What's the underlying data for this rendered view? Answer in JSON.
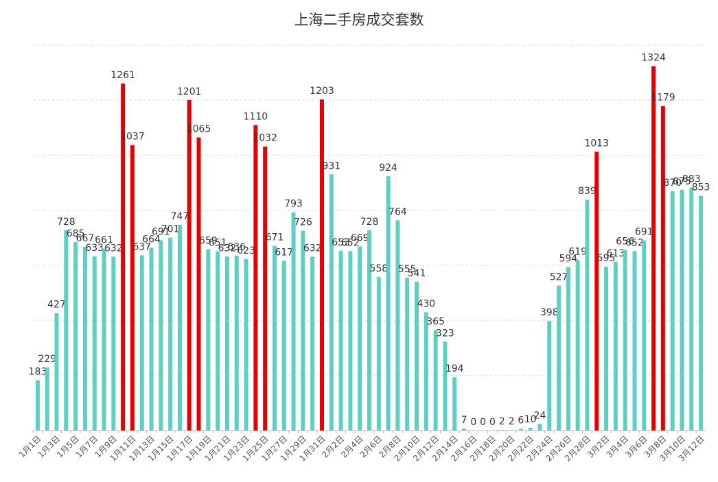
{
  "chart_data": {
    "type": "bar",
    "title": "上海二手房成交套数",
    "categories": [
      "1月1日",
      null,
      "1月3日",
      null,
      "1月5日",
      null,
      "1月7日",
      null,
      "1月9日",
      null,
      "1月11日",
      null,
      "1月13日",
      null,
      "1月15日",
      null,
      "1月17日",
      null,
      "1月19日",
      null,
      "1月21日",
      null,
      "1月23日",
      null,
      "1月25日",
      null,
      "1月27日",
      null,
      "1月29日",
      null,
      "1月31日",
      null,
      "2月2日",
      null,
      "2月4日",
      null,
      "2月6日",
      null,
      "2月8日",
      null,
      "2月10日",
      null,
      "2月12日",
      null,
      "2月14日",
      null,
      "2月16日",
      null,
      "2月18日",
      null,
      "2月20日",
      null,
      "2月22日",
      null,
      "2月24日",
      null,
      "2月26日",
      null,
      "2月28日",
      null,
      "3月2日",
      null,
      "3月4日",
      null,
      "3月6日",
      null,
      "3月8日",
      null,
      "3月10日",
      null,
      "3月12日"
    ],
    "values": [
      183,
      229,
      427,
      728,
      685,
      667,
      633,
      661,
      632,
      1261,
      1037,
      637,
      664,
      691,
      701,
      747,
      1201,
      1065,
      659,
      651,
      632,
      636,
      623,
      1110,
      1032,
      671,
      617,
      793,
      726,
      632,
      1203,
      931,
      653,
      652,
      669,
      728,
      558,
      924,
      764,
      555,
      541,
      430,
      365,
      323,
      194,
      7,
      0,
      0,
      0,
      2,
      2,
      6,
      10,
      24,
      398,
      527,
      594,
      619,
      839,
      1013,
      595,
      613,
      656,
      652,
      691,
      1324,
      1179,
      870,
      875,
      883,
      853
    ],
    "colors": [
      "#5dcfc3",
      "#5dcfc3",
      "#5dcfc3",
      "#5dcfc3",
      "#5dcfc3",
      "#5dcfc3",
      "#5dcfc3",
      "#5dcfc3",
      "#5dcfc3",
      "#e60000",
      "#e60000",
      "#5dcfc3",
      "#5dcfc3",
      "#5dcfc3",
      "#5dcfc3",
      "#5dcfc3",
      "#e60000",
      "#e60000",
      "#5dcfc3",
      "#5dcfc3",
      "#5dcfc3",
      "#5dcfc3",
      "#5dcfc3",
      "#e60000",
      "#e60000",
      "#5dcfc3",
      "#5dcfc3",
      "#5dcfc3",
      "#5dcfc3",
      "#5dcfc3",
      "#e60000",
      "#5dcfc3",
      "#5dcfc3",
      "#5dcfc3",
      "#5dcfc3",
      "#5dcfc3",
      "#5dcfc3",
      "#5dcfc3",
      "#5dcfc3",
      "#5dcfc3",
      "#5dcfc3",
      "#5dcfc3",
      "#5dcfc3",
      "#5dcfc3",
      "#5dcfc3",
      "#5dcfc3",
      "#5dcfc3",
      "#5dcfc3",
      "#5dcfc3",
      "#5dcfc3",
      "#5dcfc3",
      "#5dcfc3",
      "#5dcfc3",
      "#5dcfc3",
      "#5dcfc3",
      "#5dcfc3",
      "#5dcfc3",
      "#5dcfc3",
      "#5dcfc3",
      "#e60000",
      "#5dcfc3",
      "#5dcfc3",
      "#5dcfc3",
      "#5dcfc3",
      "#5dcfc3",
      "#e60000",
      "#e60000",
      "#5dcfc3",
      "#5dcfc3",
      "#5dcfc3",
      "#5dcfc3"
    ],
    "ylim": [
      0,
      1400
    ],
    "yticks": [
      0,
      200,
      400,
      600,
      800,
      1000,
      1200,
      1400
    ],
    "grid": true,
    "show_y_tick_labels": false
  }
}
